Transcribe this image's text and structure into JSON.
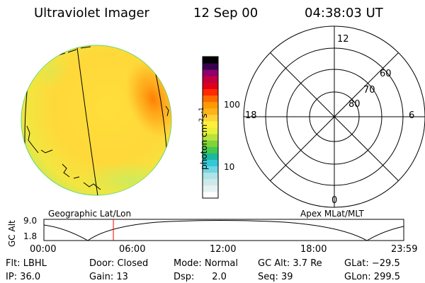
{
  "header": {
    "instrument": "Ultraviolet Imager",
    "date": "12 Sep 00",
    "time": "04:38:03 UT"
  },
  "colorbar": {
    "label": "photon cm",
    "label_exp1": "-2",
    "label_mid": "s",
    "label_exp2": "-1",
    "ticks": [
      {
        "value": "100"
      },
      {
        "value": "10"
      }
    ],
    "colors": [
      "#ffffff",
      "#e6f2f2",
      "#cfe9e9",
      "#aee3e8",
      "#6fd6e3",
      "#33c8d6",
      "#1bb8a0",
      "#44c850",
      "#7fd43a",
      "#b9e23a",
      "#e8f03a",
      "#fff03a",
      "#ffd23a",
      "#ffb21a",
      "#ff9a00",
      "#ff6a00",
      "#ff2a00",
      "#e0001a",
      "#c00040",
      "#90006a",
      "#3a0050",
      "#000000"
    ]
  },
  "polar_grid": {
    "mlt_labels": {
      "top": "12",
      "bottom": "0",
      "left": "18",
      "right": "6"
    },
    "lat_labels": [
      "60",
      "70",
      "80"
    ]
  },
  "timeline": {
    "left_caption": "Geographic Lat/Lon",
    "right_caption": "Apex MLat/MLT",
    "y_axis_label": "GC Alt",
    "y_ticks": [
      "9.0",
      "1.8"
    ],
    "x_ticks": [
      "00:00",
      "06:00",
      "12:00",
      "18:00",
      "23:59"
    ],
    "current_time_fraction": 0.193,
    "cursor_color": "#ff0000"
  },
  "status": {
    "flt": "Flt: LBHL",
    "ip": "IP: 36.0",
    "door": "Door: Closed",
    "gain": "Gain: 13",
    "mode": "Mode: Normal",
    "dsp": "Dsp:      2.0",
    "gcalt": "GC Alt: 3.7 Re",
    "seq": "Seq: 39",
    "glat": "GLat: −29.5",
    "glon": "GLon: 299.5"
  }
}
